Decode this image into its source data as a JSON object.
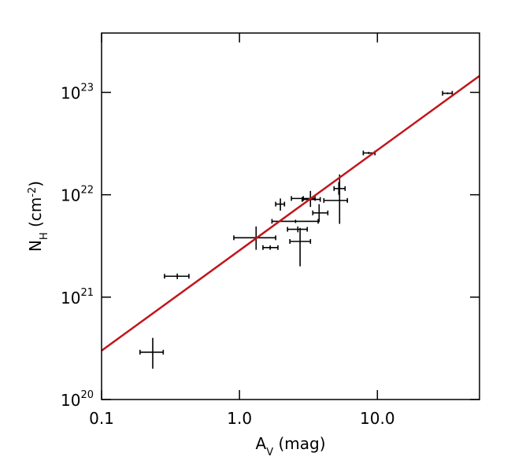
{
  "chart_data": {
    "type": "scatter",
    "xlabel": [
      "A",
      "V",
      " (mag)"
    ],
    "ylabel": [
      "N",
      "H",
      " (cm",
      "-2",
      ")"
    ],
    "log_x": true,
    "log_y": true,
    "xlim": [
      0.1,
      55
    ],
    "ylim": [
      1e+20,
      3.8e+23
    ],
    "xticks": [
      0.1,
      {
        "value": 1,
        "label": "1.0"
      },
      {
        "value": 10,
        "label": "10.0"
      }
    ],
    "yticks": [
      {
        "value": 1e+20,
        "label": "10",
        "exponent": "20"
      },
      {
        "value": 1e+21,
        "label": "10",
        "exponent": "21"
      },
      {
        "value": 1e+22,
        "label": "10",
        "exponent": "22"
      },
      {
        "value": 1e+23,
        "label": "10",
        "exponent": "23"
      }
    ],
    "series": [
      {
        "color": "#000000",
        "x": [
          0.235,
          0.354,
          1.32,
          1.67,
          1.98,
          2.55,
          2.65,
          2.75,
          2.9,
          3.27,
          3.78,
          5.32,
          5.25,
          8.65,
          32.3
        ],
        "x_low": [
          0.19,
          0.286,
          0.91,
          1.48,
          1.83,
          1.72,
          2.23,
          2.32,
          2.38,
          2.85,
          3.4,
          4.09,
          4.85,
          7.9,
          29.7
        ],
        "x_high": [
          0.28,
          0.43,
          1.83,
          1.9,
          2.12,
          3.72,
          3.1,
          3.27,
          3.53,
          3.85,
          4.37,
          6.06,
          5.83,
          9.6,
          34.9
        ],
        "values": [
          2.9e+20,
          1.6e+21,
          3.8e+21,
          3.05e+21,
          8.1e+21,
          5.5e+21,
          4.6e+21,
          3.5e+21,
          9.2e+21,
          9e+21,
          6.65e+21,
          8.8e+21,
          1.15e+22,
          2.56e+22,
          9.8e+22
        ],
        "y_low": [
          2e+20,
          1.5e+21,
          2.9e+21,
          2.9e+21,
          7e+21,
          5.3e+21,
          4.3e+21,
          2e+21,
          8.7e+21,
          7.6e+21,
          5.4e+21,
          5.2e+21,
          1e+22,
          2.5e+22,
          9.6e+22
        ],
        "y_high": [
          4e+20,
          1.7e+21,
          4.9e+21,
          3.2e+21,
          9.2e+21,
          5.7e+21,
          4.9e+21,
          4.75e+21,
          9.7e+21,
          1.09e+22,
          8.1e+21,
          1.58e+22,
          1.33e+22,
          2.62e+22,
          1e+23
        ]
      }
    ],
    "fit": {
      "color": "#c0161c",
      "x": [
        0.1,
        55
      ],
      "values": [
        3e+20,
        1.45e+23
      ]
    }
  }
}
